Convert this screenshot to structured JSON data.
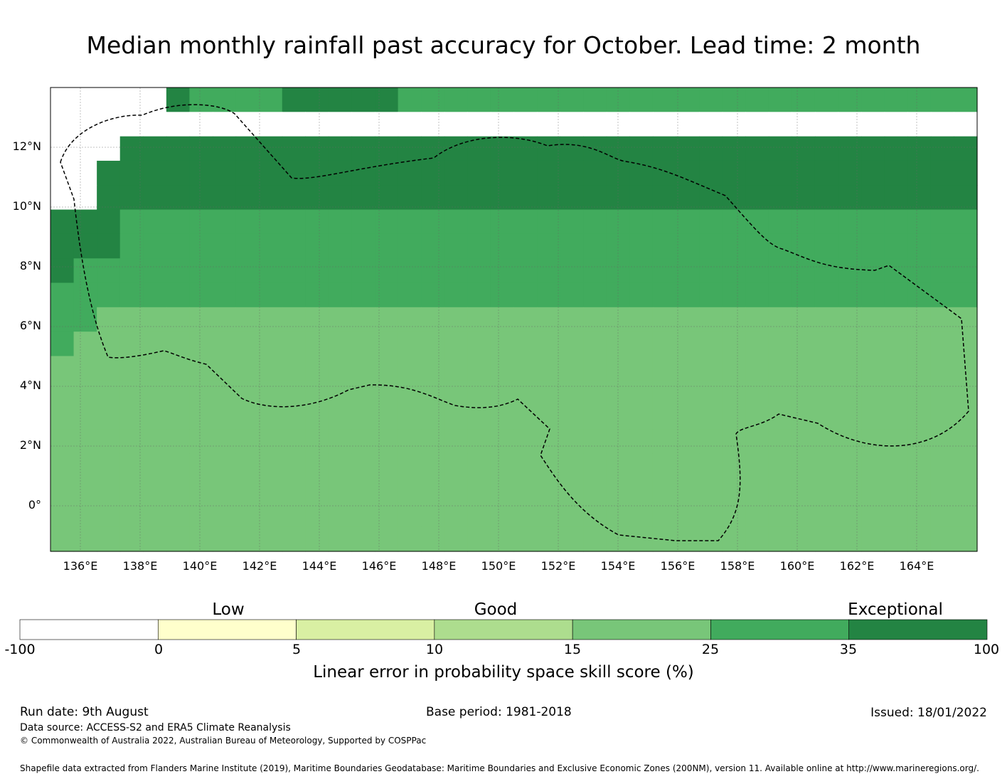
{
  "title": "Median monthly rainfall past accuracy for October. Lead time: 2 month",
  "map": {
    "lat_labels": [
      "12°N",
      "10°N",
      "8°N",
      "6°N",
      "4°N",
      "2°N",
      "0°"
    ],
    "lon_labels": [
      "136°E",
      "138°E",
      "140°E",
      "142°E",
      "144°E",
      "146°E",
      "148°E",
      "150°E",
      "152°E",
      "154°E",
      "156°E",
      "158°E",
      "160°E",
      "162°E",
      "164°E"
    ],
    "grid": {
      "lon_start": 135.0,
      "lat_top": 14.0,
      "cell_deg": 0.83,
      "rows": [
        "7777765555666665555555555555555555555555",
        "7777777777777777777777777777777777777777",
        "7776666666666666666666666666666666666666",
        "7766666666666666666666666666666666666666",
        "7766666666666666666666666666666666666666",
        "6665555555555555555555555555555555555555",
        "6665555555555555555555555555555555555555",
        "6555555555555555555555555555555555555555",
        "5555555555555555555555555555555555555555",
        "5544444444444444444444444444444444444444",
        "5444444444444444444444444444444444444444",
        "4444444444444444444444444444444444444444",
        "4444444444444444444444444444444444444444",
        "4444444444444444444444444444444444444444",
        "4444444444444444444444444444444444444444",
        "4444444444444444444444444444444444444444",
        "4444444444444444444444444444444444444444",
        "4444444444444444444444444444444444444444",
        "4444444444444444444444444444444444444444"
      ]
    }
  },
  "colorbar": {
    "categories": [
      "Low",
      "Good",
      "Exceptional"
    ],
    "ticks": [
      "-100",
      "0",
      "5",
      "10",
      "15",
      "25",
      "35",
      "100"
    ],
    "colors": [
      "#ffffff",
      "#ffffcc",
      "#d9f0a3",
      "#addd8e",
      "#78c679",
      "#41ab5d",
      "#238443"
    ],
    "label": "Linear error in probability space skill score (%)"
  },
  "footer": {
    "run_date": "Run date: 9th August",
    "base_period": "Base period: 1981-2018",
    "issued": "Issued: 18/01/2022",
    "data_source": "Data source: ACCESS-S2 and ERA5 Climate Reanalysis",
    "copyright": "© Commonwealth of Australia 2022, Australian Bureau of Meteorology, Supported by COSPPac",
    "shapefile": "Shapefile data extracted from Flanders Marine Institute (2019), Maritime Boundaries Geodatabase: Maritime Boundaries and Exclusive Economic Zones (200NM), version 11. Available online at http://www.marineregions.org/."
  }
}
